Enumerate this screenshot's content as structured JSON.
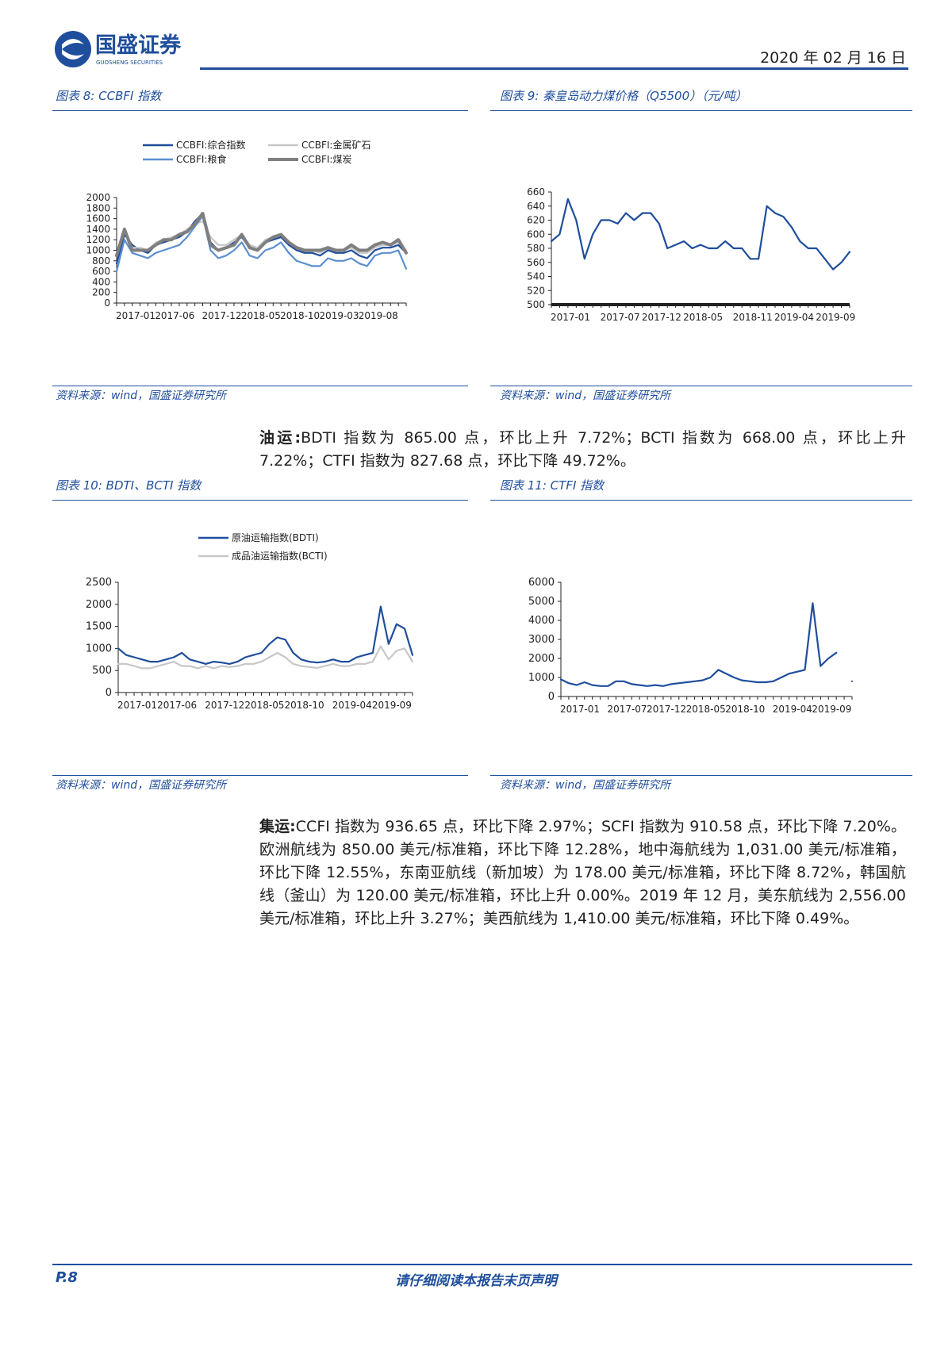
{
  "header": {
    "logo_cn": "国盛证券",
    "logo_en": "GUOSHENG SECURITIES",
    "date": "2020 年 02 月 16 日"
  },
  "chart_data": [
    {
      "type": "line",
      "title": "图表 8: CCBFI 指数",
      "source": "资料来源：wind，国盛证券研究所",
      "categories": [
        "2017-01",
        null,
        null,
        null,
        null,
        "2017-06",
        null,
        null,
        null,
        null,
        null,
        "2017-12",
        null,
        null,
        null,
        null,
        "2018-05",
        null,
        null,
        null,
        null,
        "2018-10",
        null,
        null,
        null,
        null,
        "2019-03",
        null,
        null,
        null,
        null,
        "2019-08",
        null,
        null,
        null,
        null,
        null,
        null
      ],
      "ylim": [
        0,
        2000
      ],
      "yticks": [
        0,
        200,
        400,
        600,
        800,
        1000,
        1200,
        1400,
        1600,
        1800,
        2000
      ],
      "legend": "top",
      "series": [
        {
          "name": "CCBFI:综合指数",
          "color": "#1f4e9c",
          "values": [
            750,
            1300,
            1100,
            1000,
            950,
            1100,
            1150,
            1200,
            1250,
            1350,
            1550,
            1700,
            1150,
            1000,
            1050,
            1150,
            1250,
            1050,
            1000,
            1150,
            1200,
            1250,
            1100,
            1000,
            950,
            950,
            900,
            1000,
            950,
            950,
            1000,
            900,
            850,
            1000,
            1050,
            1050,
            1100,
            950
          ]
        },
        {
          "name": "CCBFI:金属矿石",
          "color": "#c8c8c8",
          "values": [
            900,
            1350,
            1050,
            1050,
            1000,
            1150,
            1200,
            1250,
            1300,
            1400,
            1500,
            1550,
            1250,
            1100,
            1100,
            1200,
            1300,
            1100,
            1050,
            1200,
            1250,
            1300,
            1150,
            1050,
            1000,
            1000,
            950,
            1050,
            1000,
            1000,
            1050,
            950,
            950,
            1050,
            1100,
            1100,
            1150,
            1000
          ]
        },
        {
          "name": "CCBFI:粮食",
          "color": "#5b8fd0",
          "values": [
            600,
            1200,
            950,
            900,
            850,
            950,
            1000,
            1050,
            1100,
            1250,
            1450,
            1650,
            1000,
            850,
            900,
            1000,
            1150,
            900,
            850,
            1000,
            1050,
            1150,
            950,
            800,
            750,
            700,
            700,
            850,
            800,
            800,
            850,
            750,
            700,
            900,
            950,
            950,
            1000,
            650
          ]
        },
        {
          "name": "CCBFI:煤炭",
          "color": "#7f7f7f",
          "values": [
            900,
            1400,
            1000,
            1000,
            1000,
            1100,
            1200,
            1200,
            1300,
            1350,
            1500,
            1700,
            1100,
            1000,
            1050,
            1100,
            1300,
            1050,
            1000,
            1150,
            1250,
            1300,
            1150,
            1050,
            1000,
            1000,
            1000,
            1050,
            1000,
            1000,
            1100,
            1000,
            1000,
            1100,
            1150,
            1100,
            1200,
            950
          ]
        }
      ]
    },
    {
      "type": "line",
      "title": "图表 9: 秦皇岛动力煤价格（Q5500）（元/吨）",
      "source": "资料来源：wind，国盛证券研究所",
      "categories": [
        "2017-01",
        null,
        null,
        null,
        null,
        null,
        "2017-07",
        null,
        null,
        null,
        null,
        "2017-12",
        null,
        null,
        null,
        null,
        "2018-05",
        null,
        null,
        null,
        null,
        null,
        "2018-11",
        null,
        null,
        null,
        null,
        "2019-04",
        null,
        null,
        null,
        null,
        "2019-09",
        null,
        null,
        null,
        null
      ],
      "ylim": [
        500,
        660
      ],
      "yticks": [
        500,
        520,
        540,
        560,
        580,
        600,
        620,
        640,
        660
      ],
      "series": [
        {
          "color": "#1f4e9c",
          "values": [
            590,
            600,
            650,
            620,
            565,
            600,
            620,
            620,
            615,
            630,
            620,
            630,
            630,
            615,
            580,
            585,
            590,
            580,
            585,
            580,
            580,
            590,
            580,
            580,
            565,
            565,
            640,
            630,
            625,
            610,
            590,
            580,
            580,
            565,
            550,
            560,
            575
          ]
        }
      ]
    },
    {
      "type": "line",
      "title": "图表 10: BDTI、BCTI 指数",
      "source": "资料来源：wind，国盛证券研究所",
      "categories": [
        "2017-01",
        null,
        null,
        null,
        null,
        "2017-06",
        null,
        null,
        null,
        null,
        null,
        "2017-12",
        null,
        null,
        null,
        null,
        "2018-05",
        null,
        null,
        null,
        null,
        "2018-10",
        null,
        null,
        null,
        null,
        null,
        "2019-04",
        null,
        null,
        null,
        null,
        "2019-09",
        null,
        null,
        null,
        null,
        null
      ],
      "ylim": [
        0,
        2500
      ],
      "yticks": [
        0,
        500,
        1000,
        1500,
        2000,
        2500
      ],
      "legend": "top",
      "series": [
        {
          "name": "原油运输指数(BDTI)",
          "color": "#1f4e9c",
          "values": [
            1000,
            850,
            800,
            750,
            700,
            700,
            750,
            800,
            900,
            750,
            700,
            650,
            700,
            680,
            650,
            700,
            800,
            850,
            900,
            1100,
            1250,
            1200,
            900,
            750,
            700,
            680,
            700,
            750,
            700,
            700,
            800,
            850,
            900,
            1950,
            1100,
            1550,
            1450,
            850
          ]
        },
        {
          "name": "成品油运输指数(BCTI)",
          "color": "#c8c8c8",
          "values": [
            650,
            650,
            600,
            550,
            550,
            600,
            650,
            700,
            600,
            600,
            550,
            600,
            550,
            600,
            580,
            600,
            650,
            650,
            700,
            800,
            900,
            800,
            650,
            600,
            580,
            560,
            600,
            650,
            600,
            600,
            650,
            650,
            700,
            1050,
            750,
            950,
            1000,
            700
          ]
        }
      ]
    },
    {
      "type": "line",
      "title": "图表 11: CTFI 指数",
      "source": "资料来源：wind，国盛证券研究所",
      "categories": [
        "2017-01",
        null,
        null,
        null,
        null,
        null,
        "2017-07",
        null,
        null,
        null,
        null,
        "2017-12",
        null,
        null,
        null,
        null,
        "2018-05",
        null,
        null,
        null,
        null,
        "2018-10",
        null,
        null,
        null,
        null,
        null,
        "2019-04",
        null,
        null,
        null,
        null,
        "2019-09",
        null,
        null,
        null,
        null,
        null
      ],
      "ylim": [
        0,
        6000
      ],
      "yticks": [
        0,
        1000,
        2000,
        3000,
        4000,
        5000,
        6000
      ],
      "series": [
        {
          "color": "#1f4e9c",
          "values": [
            900,
            700,
            600,
            750,
            600,
            550,
            550,
            800,
            800,
            650,
            600,
            550,
            600,
            550,
            650,
            700,
            750,
            800,
            850,
            1000,
            1400,
            1200,
            1000,
            850,
            800,
            750,
            750,
            800,
            1000,
            1200,
            1300,
            1400,
            4900,
            1600,
            2000,
            2300,
            null,
            800
          ]
        }
      ]
    }
  ],
  "paragraphs": [
    {
      "lead": "油运:",
      "text": "BDTI 指数为 865.00 点，环比上升 7.72%；BCTI 指数为 668.00 点，环比上升 7.22%；CTFI 指数为 827.68 点，环比下降 49.72%。"
    },
    {
      "lead": "集运:",
      "text": "CCFI 指数为 936.65 点，环比下降 2.97%；SCFI 指数为 910.58 点，环比下降 7.20%。欧洲航线为 850.00 美元/标准箱，环比下降 12.28%，地中海航线为 1,031.00 美元/标准箱，环比下降 12.55%，东南亚航线（新加坡）为 178.00 美元/标准箱，环比下降 8.72%，韩国航线（釜山）为 120.00 美元/标准箱，环比上升 0.00%。2019 年 12 月，美东航线为 2,556.00 美元/标准箱，环比上升 3.27%；美西航线为 1,410.00 美元/标准箱，环比下降 0.49%。"
    }
  ],
  "footer": {
    "page": "P.8",
    "notice": "请仔细阅读本报告末页声明"
  }
}
